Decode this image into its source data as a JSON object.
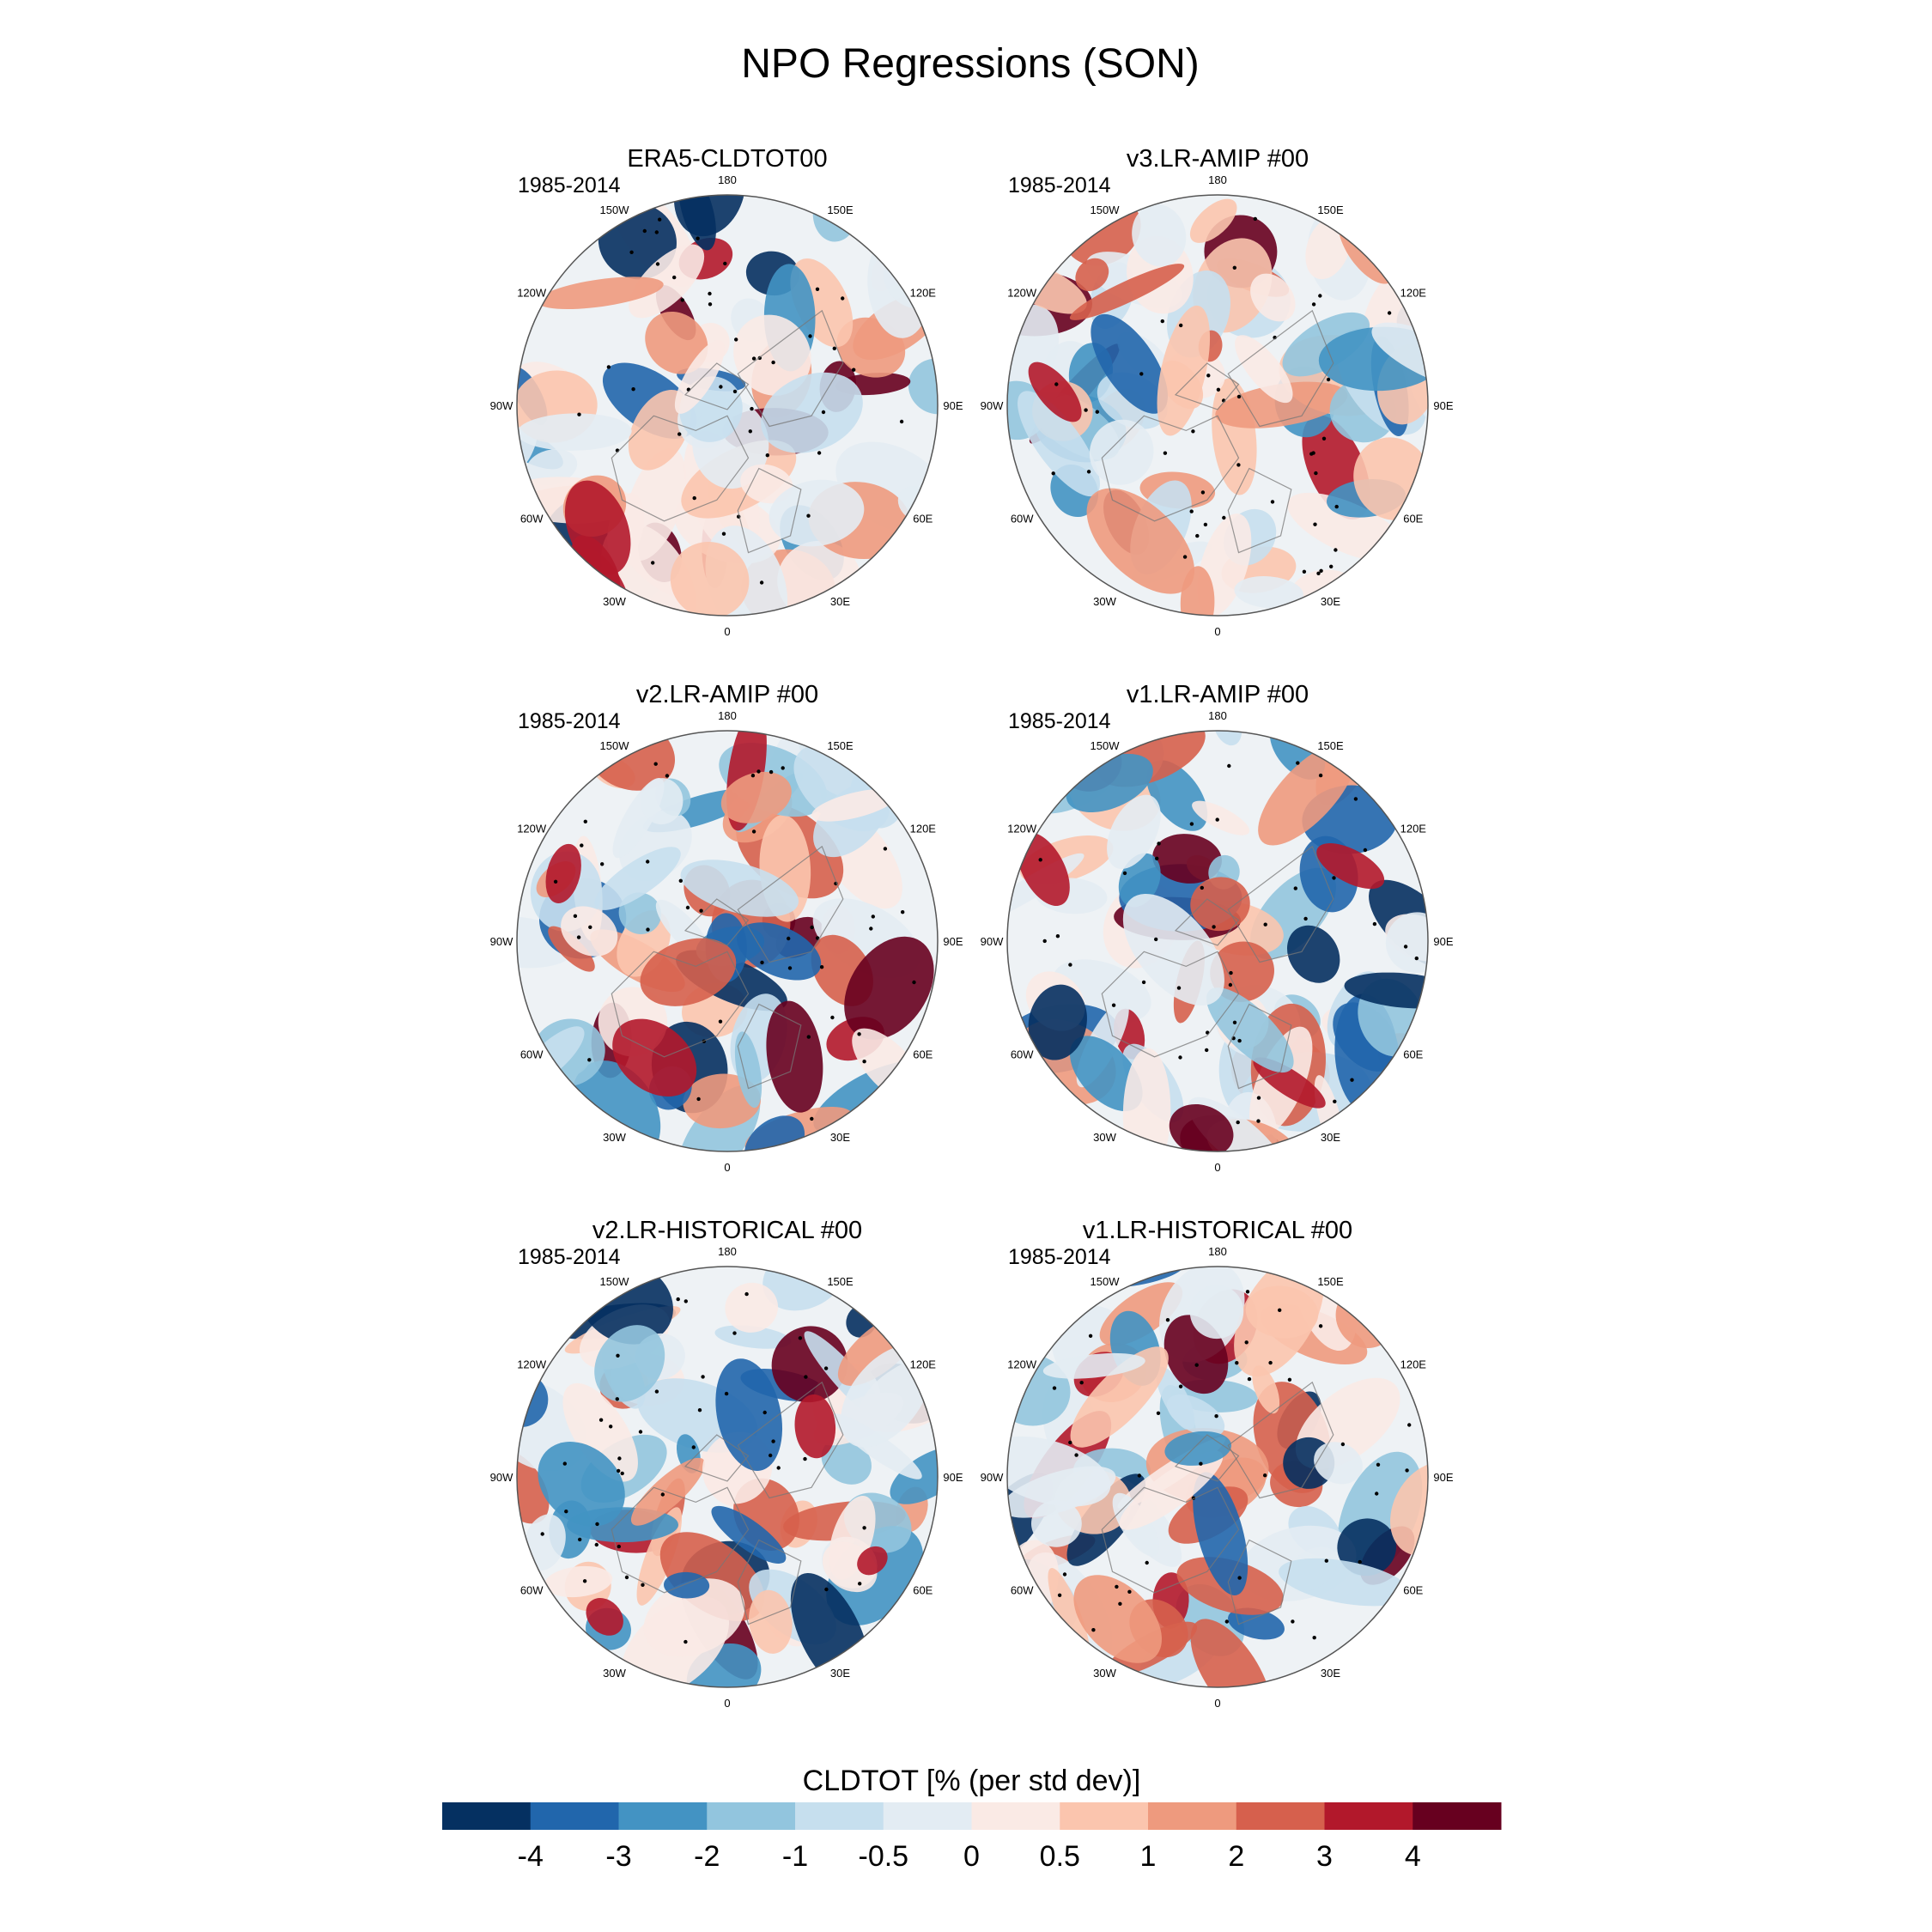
{
  "title": "NPO Regressions (SON)",
  "panels": [
    {
      "title": "ERA5-CLDTOT00",
      "period": "1985-2014"
    },
    {
      "title": "v3.LR-AMIP  #00",
      "period": "1985-2014"
    },
    {
      "title": "v2.LR-AMIP  #00",
      "period": "1985-2014"
    },
    {
      "title": "v1.LR-AMIP  #00",
      "period": "1985-2014"
    },
    {
      "title": "v2.LR-HISTORICAL  #00",
      "period": "1985-2014"
    },
    {
      "title": "v1.LR-HISTORICAL  #00",
      "period": "1985-2014"
    }
  ],
  "longitude_labels": [
    "180",
    "150E",
    "120E",
    "90E",
    "60E",
    "30E",
    "0",
    "30W",
    "60W",
    "90W",
    "120W",
    "150W"
  ],
  "colorbar": {
    "label": "CLDTOT [% (per std dev)]",
    "ticks": [
      "-4",
      "-3",
      "-2",
      "-1",
      "-0.5",
      "0",
      "0.5",
      "1",
      "2",
      "3",
      "4"
    ],
    "colors": [
      "#053061",
      "#2166ac",
      "#4393c3",
      "#92c5de",
      "#c6dfee",
      "#e3ecf3",
      "#faeae5",
      "#fbc5ae",
      "#ee9a7e",
      "#d6604d",
      "#b2182b",
      "#67001f"
    ]
  }
}
